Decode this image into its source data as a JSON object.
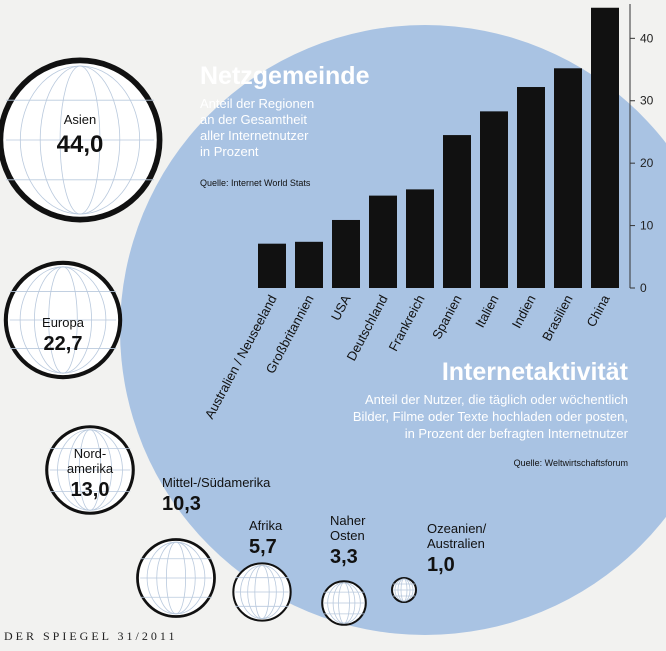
{
  "chart_data": [
    {
      "type": "bar",
      "title": "Internetaktivität",
      "subtitle": "Anteil der Nutzer, die täglich oder wöchentlich\nBilder, Filme oder Texte hochladen oder posten,\nin Prozent der befragten Internetnutzer",
      "source": "Quelle: Weltwirtschaftsforum",
      "categories": [
        "Australien / Neuseeland",
        "Großbritannien",
        "USA",
        "Deutschland",
        "Frankreich",
        "Spanien",
        "Italien",
        "Indien",
        "Brasilien",
        "China"
      ],
      "values": [
        7.1,
        7.4,
        10.9,
        14.8,
        15.8,
        24.5,
        28.3,
        32.2,
        35.2,
        44.9
      ],
      "color": "#111111",
      "ylim": [
        0,
        45.5
      ],
      "yticks": [
        0,
        10,
        20,
        30,
        40
      ]
    },
    {
      "type": "bubble",
      "title": "Netzgemeinde",
      "subtitle": "Anteil der Regionen\nan der Gesamtheit\naller Internetnutzer\nin Prozent",
      "source": "Quelle: Internet World Stats",
      "categories": [
        "Asien",
        "Europa",
        "Nord-\namerika",
        "Mittel-/Südamerika",
        "Afrika",
        "Naher\nOsten",
        "Ozeanien/\nAustralien"
      ],
      "values": [
        44.0,
        22.7,
        13.0,
        10.3,
        5.7,
        3.3,
        1.0
      ],
      "value_labels": [
        "44,0",
        "22,7",
        "13,0",
        "10,3",
        "5,7",
        "3,3",
        "1,0"
      ],
      "color": "#ffffff"
    }
  ],
  "footer": "DER SPIEGEL 31/2011"
}
